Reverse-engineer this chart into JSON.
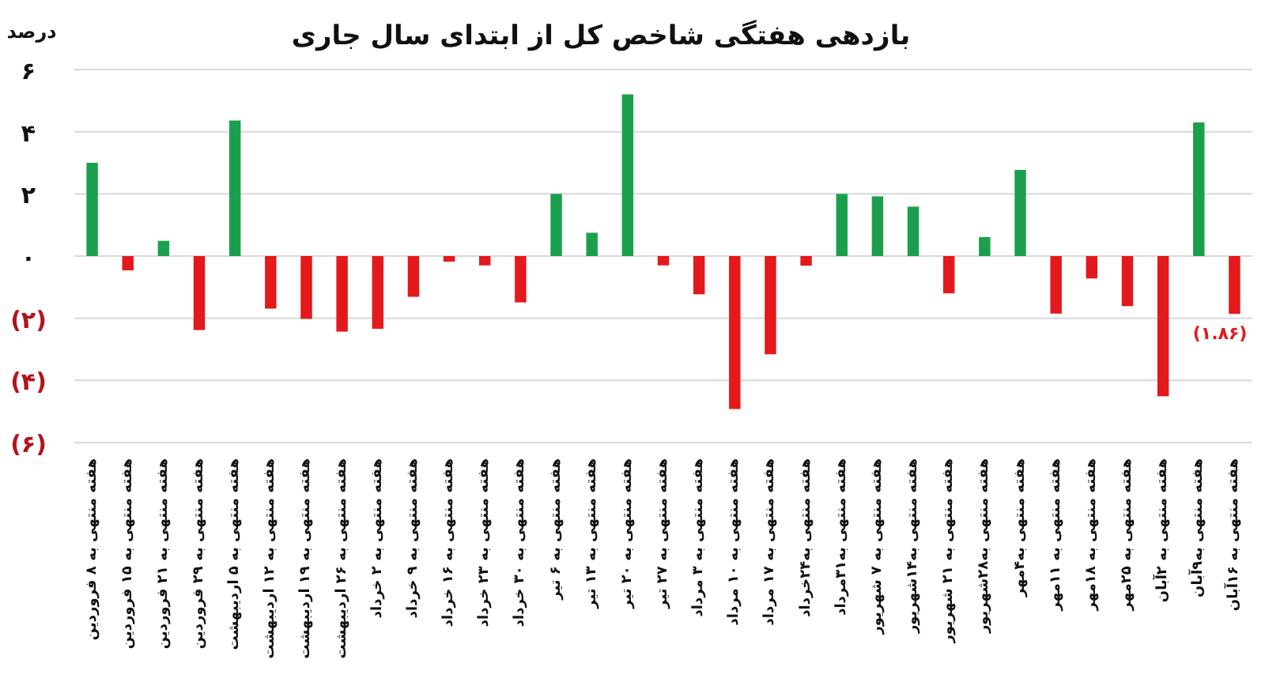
{
  "chart_data": {
    "type": "bar",
    "title": "بازدهی هفتگی شاخص کل از ابتدای سال جاری",
    "ylabel": "درصد",
    "categories": [
      "هفته منتهی به ۸ فروردین",
      "هفته منتهی به ۱۵ فروردین",
      "هفته منتهی به ۲۱ فروردین",
      "هفته منتهی به ۲۹ فروردین",
      "هفته منتهی به ۵ اردیبهشت",
      "هفته منتهی به ۱۲ اردیبهشت",
      "هفته منتهی به ۱۹ اردیبهشت",
      "هفته منتهی به ۲۶ اردیبهشت",
      "هفته منتهی به ۲ خرداد",
      "هفته منتهی به ۹ خرداد",
      "هفته منتهی به ۱۶ خرداد",
      "هفته منتهی به ۲۳ خرداد",
      "هفته منتهی به ۳۰ خرداد",
      "هفته منتهی به ۶ تیر",
      "هفته منتهی به ۱۳ تیر",
      "هفته منتهی به ۲۰ تیر",
      "هفته منتهی به ۲۷ تیر",
      "هفته منتهی به ۳ مرداد",
      "هفته منتهی به ۱۰ مرداد",
      "هفته منتهی به ۱۷ مرداد",
      "هفته منتهی به۲۴خرداد",
      "هفته منتهی به۳۱مرداد",
      "هفته منتهی به ۷ شهریور",
      "هفته منتهی به۱۴شهریور",
      "هفته منتهی به ۲۱ شهریور",
      "هفته منتهی به۲۸شهریور",
      "هفته منتهی به۴مهر",
      "هفته منتهی به ۱۱مهر",
      "هفته منتهی به ۱۸مهر",
      "هفته منتهی به ۲۵مهر",
      "هفته منتهی به ۲آبان",
      "هفته منتهی به۹آبان",
      "هفته منتهی به ۱۶آبان"
    ],
    "values": [
      3.0,
      -0.46,
      0.49,
      -2.38,
      4.36,
      -1.69,
      -2.02,
      -2.43,
      -2.34,
      -1.31,
      -0.18,
      -0.3,
      -1.49,
      2.0,
      0.75,
      5.2,
      -0.3,
      -1.23,
      -4.92,
      -3.16,
      -0.31,
      2.0,
      1.92,
      1.59,
      -1.2,
      0.61,
      2.77,
      -1.85,
      -0.72,
      -1.61,
      -4.51,
      4.3,
      -1.86
    ],
    "colors": [
      "#1aa04c",
      "#e3191c",
      "#1aa04c",
      "#e3191c",
      "#1aa04c",
      "#e3191c",
      "#e3191c",
      "#e3191c",
      "#e3191c",
      "#e3191c",
      "#e3191c",
      "#e3191c",
      "#e3191c",
      "#1aa04c",
      "#1aa04c",
      "#1aa04c",
      "#e3191c",
      "#e3191c",
      "#e3191c",
      "#e3191c",
      "#e3191c",
      "#1aa04c",
      "#1aa04c",
      "#1aa04c",
      "#e3191c",
      "#1aa04c",
      "#1aa04c",
      "#e3191c",
      "#e3191c",
      "#e3191c",
      "#e3191c",
      "#1aa04c",
      "#e3191c"
    ],
    "value_labels": [
      null,
      null,
      null,
      null,
      null,
      null,
      null,
      null,
      null,
      null,
      null,
      null,
      null,
      null,
      null,
      null,
      null,
      null,
      null,
      null,
      null,
      null,
      null,
      null,
      null,
      null,
      null,
      null,
      null,
      null,
      null,
      null,
      "(۱.۸۶)"
    ],
    "ylim": [
      -6,
      6
    ],
    "yticks": [
      {
        "value": 6,
        "label": "۶"
      },
      {
        "value": 4,
        "label": "۴"
      },
      {
        "value": 2,
        "label": "۲"
      },
      {
        "value": 0,
        "label": "۰"
      },
      {
        "value": -2,
        "label": "(۲)"
      },
      {
        "value": -4,
        "label": "(۴)"
      },
      {
        "value": -6,
        "label": "(۶)"
      }
    ],
    "grid": "y"
  }
}
